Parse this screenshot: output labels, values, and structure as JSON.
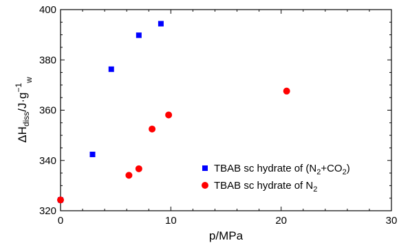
{
  "chart_data": {
    "type": "scatter",
    "xlabel": "p/MPa",
    "ylabel": {
      "base": "ΔH",
      "sub1": "diss",
      "mid": "/J·g",
      "sup": "−1",
      "sub2": "w"
    },
    "xlim": [
      0,
      30
    ],
    "ylim": [
      320,
      400
    ],
    "xticks": [
      0,
      10,
      20,
      30
    ],
    "yticks": [
      320,
      340,
      360,
      380,
      400
    ],
    "grid": false,
    "legend_position": "bottom-right",
    "series": [
      {
        "name": "TBAB sc hydrate of (N2+CO2)",
        "legend": {
          "pre": "TBAB sc hydrate of (N",
          "sub1": "2",
          "mid": "+CO",
          "sub2": "2",
          "post": ")"
        },
        "marker": "square",
        "color": "#0000ff",
        "points": [
          {
            "x": 0.0,
            "y": 324.3
          },
          {
            "x": 2.9,
            "y": 342.4
          },
          {
            "x": 4.6,
            "y": 376.3
          },
          {
            "x": 7.1,
            "y": 389.8
          },
          {
            "x": 9.1,
            "y": 394.4
          }
        ]
      },
      {
        "name": "TBAB sc hydrate of N2",
        "legend": {
          "pre": "TBAB sc hydrate of N",
          "sub1": "2",
          "mid": "",
          "sub2": "",
          "post": ""
        },
        "marker": "circle",
        "color": "#ff0000",
        "points": [
          {
            "x": 0.0,
            "y": 324.3
          },
          {
            "x": 6.2,
            "y": 334.1
          },
          {
            "x": 7.1,
            "y": 336.7
          },
          {
            "x": 8.3,
            "y": 352.5
          },
          {
            "x": 9.8,
            "y": 358.1
          },
          {
            "x": 20.5,
            "y": 367.6
          }
        ]
      }
    ]
  }
}
